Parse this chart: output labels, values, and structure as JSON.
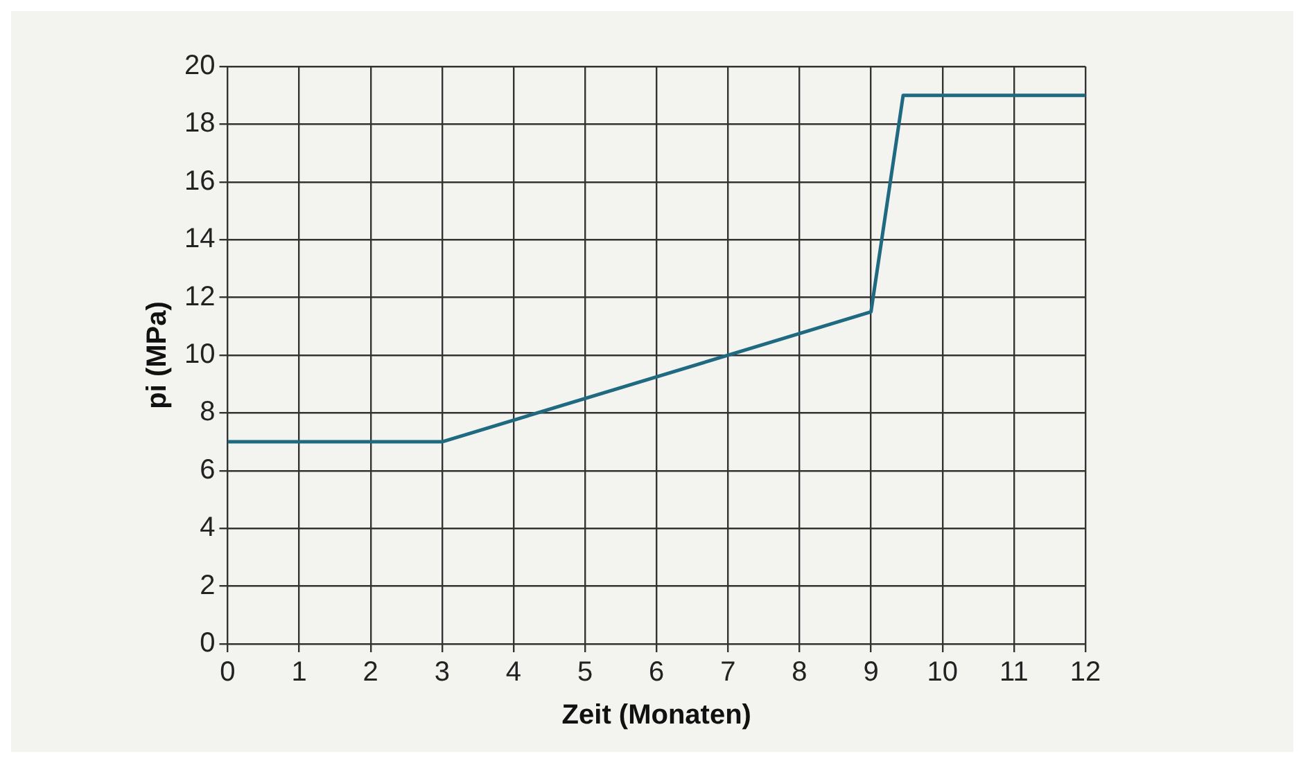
{
  "chart_data": {
    "type": "line",
    "xlabel": "Zeit (Monaten)",
    "ylabel": "pi (MPa)",
    "series": [
      {
        "color": "#1f6a80",
        "x": [
          0,
          3,
          9,
          9.45,
          12
        ],
        "values": [
          7,
          7,
          11.5,
          19,
          19
        ]
      }
    ],
    "xlim": [
      0,
      12
    ],
    "xticks": [
      0,
      1,
      2,
      3,
      4,
      5,
      6,
      7,
      8,
      9,
      10,
      11,
      12
    ],
    "ylim": [
      0,
      20
    ],
    "yticks": [
      0,
      2,
      4,
      6,
      8,
      10,
      12,
      14,
      16,
      18,
      20
    ],
    "grid": true,
    "legend": false,
    "marker": "none",
    "line_style": "solid"
  }
}
